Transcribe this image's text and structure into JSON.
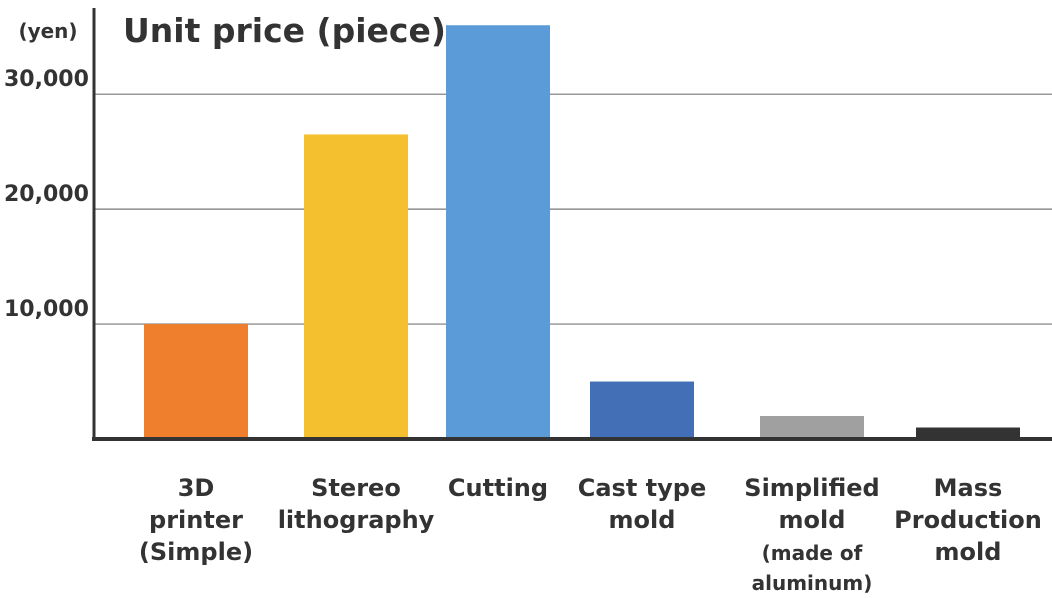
{
  "chart_data": {
    "type": "bar",
    "title": "Unit price (piece)",
    "ylabel": "(yen)",
    "xlabel": "",
    "ylim": [
      0,
      37500
    ],
    "yticks": [
      10000,
      20000,
      30000
    ],
    "ytick_labels": [
      "10,000",
      "20,000",
      "30,000"
    ],
    "grid": true,
    "categories": [
      "3D printer (Simple)",
      "Stereo lithography",
      "Cutting",
      "Cast type mold",
      "Simplified mold (made of aluminum)",
      "Mass Production mold"
    ],
    "category_lines": [
      [
        {
          "t": "3D"
        },
        {
          "t": "printer"
        },
        {
          "t": "(Simple)"
        }
      ],
      [
        {
          "t": "Stereo"
        },
        {
          "t": "lithography"
        }
      ],
      [
        {
          "t": "Cutting"
        }
      ],
      [
        {
          "t": "Cast type"
        },
        {
          "t": "mold"
        }
      ],
      [
        {
          "t": "Simplified"
        },
        {
          "t": "mold"
        },
        {
          "t": "(made of",
          "small": true
        },
        {
          "t": "aluminum)",
          "small": true
        }
      ],
      [
        {
          "t": "Mass"
        },
        {
          "t": "Production"
        },
        {
          "t": "mold"
        }
      ]
    ],
    "values": [
      10000,
      26500,
      36000,
      5000,
      2000,
      1000
    ],
    "colors": [
      "#f07f2d",
      "#f5c030",
      "#5b9bd8",
      "#436fb6",
      "#a0a0a0",
      "#333333"
    ]
  }
}
